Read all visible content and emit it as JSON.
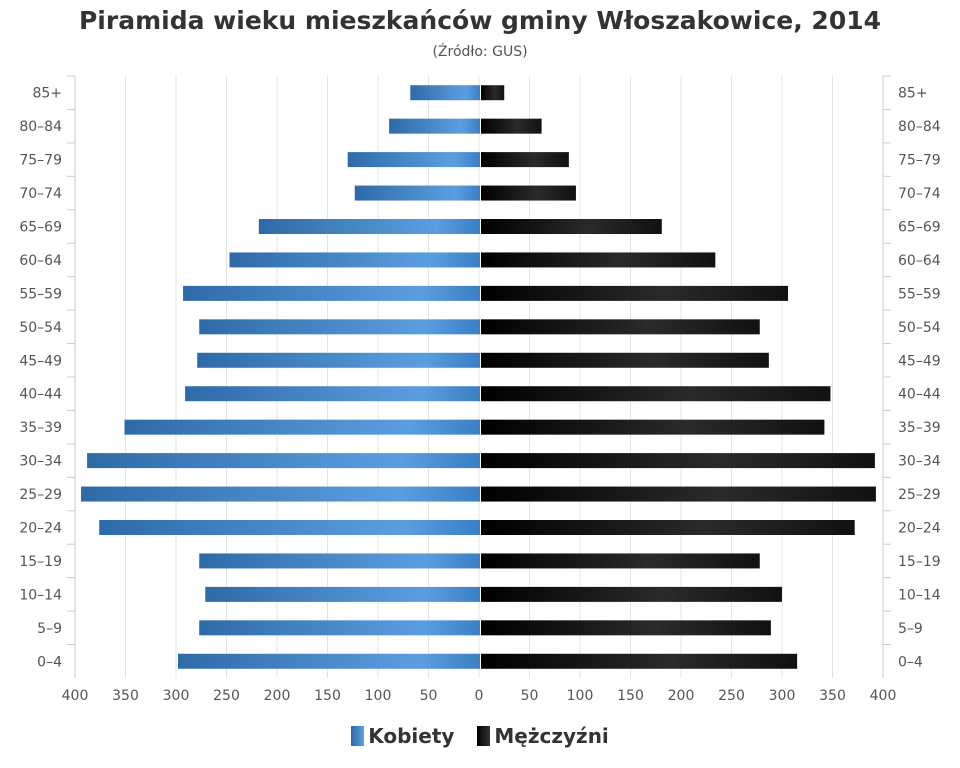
{
  "chart_data": {
    "type": "bar",
    "orientation": "horizontal-pyramid",
    "title": "Piramida wieku mieszkańców gminy Włoszakowice, 2014",
    "subtitle": "(Źródło: GUS)",
    "categories": [
      "85+",
      "80-84",
      "75-79",
      "70-74",
      "65-69",
      "60-64",
      "55-59",
      "50-54",
      "45-49",
      "40-44",
      "35-39",
      "30-34",
      "25-29",
      "20-24",
      "15-19",
      "10-14",
      "5-9",
      "0-4"
    ],
    "series": [
      {
        "name": "Kobiety",
        "side": "left",
        "color": "#3a7fc4",
        "values": [
          69,
          90,
          131,
          124,
          219,
          248,
          294,
          278,
          280,
          292,
          352,
          389,
          395,
          377,
          278,
          272,
          278,
          299
        ]
      },
      {
        "name": "Mężczyźni",
        "side": "right",
        "color": "#111111",
        "values": [
          23,
          60,
          87,
          94,
          179,
          232,
          304,
          276,
          285,
          346,
          340,
          390,
          391,
          370,
          276,
          298,
          287,
          313
        ]
      }
    ],
    "xlim": [
      0,
      400
    ],
    "xticks": [
      "400",
      "350",
      "300",
      "250",
      "200",
      "150",
      "100",
      "50",
      "0",
      "50",
      "100",
      "150",
      "200",
      "250",
      "300",
      "350",
      "400"
    ],
    "grid": true,
    "legend": "bottom"
  }
}
